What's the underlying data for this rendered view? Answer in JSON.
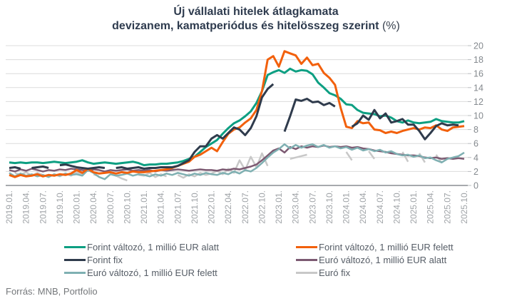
{
  "title": {
    "line1": "Új vállalati hitelek átlagkamata",
    "line2": "devizanem, kamatperiódus és hitelösszeg szerint",
    "suffix": "(%)"
  },
  "footer": {
    "source": "Forrás: MNB, Portfolio"
  },
  "chart_data": {
    "type": "line",
    "title": "Új vállalati hitelek átlagkamata",
    "subtitle": "devizanem, kamatperiódus és hitelösszeg szerint (%)",
    "grid": {
      "horizontal": true,
      "color": "#dcdcdc",
      "axis_line_color": "#8a8e92"
    },
    "legend_position": "bottom",
    "y_axis": {
      "side": "right",
      "min": 0,
      "max": 20,
      "step": 2,
      "tick_labels": [
        "0",
        "2",
        "4",
        "6",
        "8",
        "10",
        "12",
        "14",
        "16",
        "18",
        "20"
      ],
      "label_color": "#84898e",
      "tick_color": "#b9bcbf"
    },
    "x_axis": {
      "n_points": 82,
      "months_per_tick": 3,
      "label_color": "#9fa3a7",
      "tick_labels": [
        "2019.01.",
        "2019.04.",
        "2019.07.",
        "2019.10.",
        "2020.01.",
        "2020.04.",
        "2020.07.",
        "2020.10.",
        "2021.01.",
        "2021.04.",
        "2021.07.",
        "2021.10.",
        "2022.01.",
        "2022.04.",
        "2022.07.",
        "2022.10.",
        "2023.01.",
        "2023.04.",
        "2023.07.",
        "2023.10.",
        "2024.01.",
        "2024.04.",
        "2024.07.",
        "2024.10.",
        "2025.01.",
        "2025.04.",
        "2025.07.",
        "2025.10."
      ]
    },
    "series": [
      {
        "id": "forint-valtozo-alatt",
        "name": "Forint változó, 1 millió EUR alatt",
        "color": "#0d9f82",
        "width": 3,
        "values": [
          3.3,
          3.2,
          3.3,
          3.2,
          3.3,
          3.3,
          3.2,
          3.3,
          3.4,
          3.3,
          3.2,
          3.3,
          3.4,
          3.6,
          3.3,
          3.1,
          3.2,
          3.3,
          3.2,
          3.1,
          3.2,
          3.3,
          3.4,
          3.2,
          2.9,
          3.0,
          3.0,
          3.1,
          3.1,
          3.2,
          3.3,
          3.5,
          3.8,
          4.1,
          4.8,
          5.5,
          6.0,
          6.5,
          7.4,
          8.2,
          8.9,
          9.3,
          9.9,
          10.6,
          11.8,
          13.5,
          15.8,
          16.2,
          16.5,
          16.1,
          16.7,
          16.3,
          16.5,
          16.4,
          15.9,
          14.7,
          14.0,
          13.2,
          12.9,
          12.4,
          11.6,
          11.5,
          10.8,
          10.4,
          10.3,
          10.2,
          9.9,
          10.0,
          9.7,
          9.2,
          9.0,
          9.3,
          9.0,
          8.9,
          9.0,
          9.1,
          9.5,
          9.2,
          9.1,
          9.0,
          9.0,
          9.2
        ]
      },
      {
        "id": "forint-valtozo-felett",
        "name": "Forint változó, 1 millió EUR felett",
        "color": "#f2600c",
        "width": 3,
        "values": [
          1.5,
          1.2,
          1.5,
          1.3,
          1.4,
          1.6,
          1.3,
          1.5,
          1.4,
          1.6,
          1.5,
          1.7,
          2.2,
          1.8,
          2.4,
          1.9,
          1.7,
          1.8,
          1.9,
          1.7,
          1.9,
          1.8,
          2.0,
          1.9,
          1.9,
          2.0,
          2.1,
          2.2,
          2.3,
          2.5,
          2.8,
          3.1,
          3.4,
          4.1,
          4.4,
          4.9,
          5.4,
          4.9,
          6.2,
          7.4,
          8.0,
          8.3,
          9.0,
          9.6,
          10.8,
          13.5,
          18.0,
          18.5,
          17.0,
          19.2,
          18.9,
          18.6,
          17.4,
          18.3,
          17.2,
          17.4,
          16.1,
          15.4,
          14.4,
          11.1,
          8.4,
          8.2,
          9.2,
          8.9,
          9.0,
          8.0,
          7.9,
          7.5,
          7.7,
          7.5,
          7.8,
          8.0,
          8.2,
          8.0,
          8.3,
          8.2,
          8.6,
          8.0,
          7.8,
          8.3,
          8.4,
          8.5
        ]
      },
      {
        "id": "forint-fix",
        "name": "Forint fix",
        "color": "#2f3b4c",
        "width": 3,
        "values": [
          2.5,
          2.6,
          2.4,
          null,
          2.5,
          2.6,
          2.7,
          2.5,
          null,
          2.9,
          3.0,
          2.8,
          2.6,
          2.5,
          2.4,
          2.5,
          2.6,
          2.5,
          null,
          2.5,
          2.6,
          2.4,
          2.5,
          2.6,
          2.4,
          2.5,
          2.5,
          2.6,
          2.6,
          2.6,
          2.8,
          3.2,
          3.6,
          4.8,
          5.6,
          5.6,
          6.7,
          7.2,
          6.7,
          7.5,
          8.3,
          8.0,
          7.2,
          8.2,
          9.9,
          12.6,
          13.8,
          14.5,
          null,
          7.7,
          9.9,
          12.3,
          12.1,
          12.4,
          11.9,
          12.0,
          11.5,
          11.8,
          11.3,
          null,
          null,
          8.4,
          8.9,
          10.0,
          9.4,
          10.8,
          9.6,
          10.3,
          9.0,
          9.2,
          9.5,
          8.7,
          8.7,
          7.8,
          6.6,
          7.5,
          8.5,
          8.9,
          8.6,
          8.7,
          8.6,
          null
        ]
      },
      {
        "id": "euro-valtozo-alatt",
        "name": "Euró változó, 1 millió EUR alatt",
        "color": "#7c5a72",
        "width": 2.5,
        "values": [
          2.2,
          2.0,
          2.3,
          2.1,
          2.4,
          2.2,
          2.0,
          2.2,
          2.1,
          2.3,
          2.2,
          2.4,
          2.3,
          2.2,
          2.1,
          2.3,
          2.2,
          2.0,
          2.2,
          2.1,
          2.2,
          2.3,
          2.1,
          2.2,
          2.1,
          2.2,
          2.0,
          2.2,
          2.1,
          2.2,
          2.3,
          2.2,
          2.1,
          2.2,
          2.3,
          2.2,
          2.2,
          2.1,
          2.3,
          2.2,
          2.4,
          2.3,
          2.5,
          2.7,
          3.0,
          3.6,
          4.3,
          5.0,
          5.3,
          4.7,
          5.5,
          5.2,
          5.6,
          5.4,
          5.6,
          5.5,
          5.7,
          5.5,
          5.6,
          5.5,
          5.6,
          5.4,
          5.5,
          5.3,
          5.2,
          5.0,
          4.9,
          4.8,
          4.6,
          4.5,
          4.4,
          4.3,
          4.3,
          4.2,
          4.0,
          3.9,
          4.0,
          3.8,
          3.9,
          3.8,
          3.9,
          3.8
        ]
      },
      {
        "id": "euro-valtozo-felett",
        "name": "Euró változó, 1 millió EUR felett",
        "color": "#7fb0b2",
        "width": 2.5,
        "values": [
          1.8,
          1.3,
          1.7,
          1.4,
          1.6,
          1.3,
          1.5,
          1.2,
          1.6,
          1.4,
          1.7,
          1.5,
          1.6,
          1.4,
          2.2,
          1.8,
          1.2,
          0.9,
          1.6,
          1.4,
          1.5,
          1.7,
          1.4,
          1.6,
          1.5,
          1.3,
          1.6,
          1.4,
          1.7,
          1.5,
          1.8,
          1.6,
          1.4,
          1.7,
          1.5,
          1.8,
          1.6,
          1.5,
          1.8,
          1.6,
          2.0,
          1.7,
          2.2,
          2.0,
          2.5,
          3.2,
          4.0,
          4.7,
          5.2,
          5.9,
          5.3,
          5.8,
          5.4,
          5.7,
          5.9,
          5.5,
          5.8,
          5.4,
          5.6,
          5.3,
          5.5,
          5.1,
          5.4,
          5.0,
          5.2,
          4.9,
          5.1,
          4.7,
          4.9,
          4.5,
          4.3,
          4.4,
          4.1,
          4.3,
          3.9,
          4.0,
          3.6,
          3.3,
          3.8,
          4.0,
          4.2,
          4.7
        ]
      },
      {
        "id": "euro-fix",
        "name": "Euró fix",
        "color": "#c8c8c8",
        "width": 2.5,
        "values": [
          null,
          1.8,
          1.5,
          1.9,
          1.4,
          1.8,
          1.5,
          null,
          1.6,
          1.3,
          1.7,
          1.4,
          1.9,
          1.5,
          null,
          1.6,
          1.3,
          null,
          1.7,
          1.4,
          1.0,
          0.7,
          null,
          1.5,
          1.4,
          1.8,
          1.2,
          1.6,
          1.3,
          null,
          1.5,
          1.1,
          1.6,
          1.3,
          1.8,
          1.5,
          1.7,
          2.1,
          1.6,
          2.4,
          1.8,
          3.6,
          2.2,
          4.1,
          2.6,
          4.6,
          2.8,
          null,
          null,
          null,
          3.8,
          4.0,
          4.2,
          4.4,
          null,
          null,
          null,
          null,
          null,
          null,
          4.8,
          3.6,
          null,
          null,
          4.9,
          3.8,
          null,
          null,
          null,
          null,
          4.8,
          3.4,
          null,
          4.6,
          3.3,
          null,
          4.4,
          3.2,
          null,
          null,
          null,
          null
        ]
      }
    ]
  }
}
